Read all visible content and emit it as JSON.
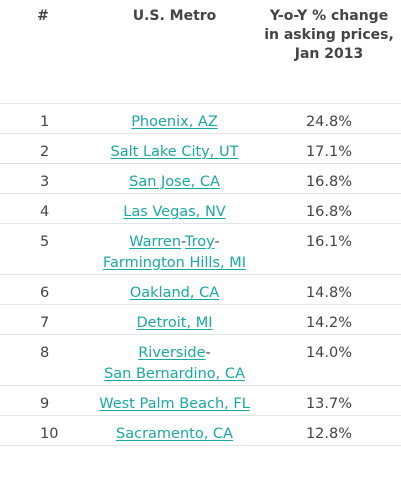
{
  "table": {
    "headers": {
      "rank": "#",
      "metro": "U.S. Metro",
      "change": "Y-o-Y % change in asking prices, Jan 2013"
    },
    "rows": [
      {
        "rank": "1",
        "metro_parts": [
          "Phoenix, AZ"
        ],
        "change": "24.8%"
      },
      {
        "rank": "2",
        "metro_parts": [
          "Salt Lake City, UT"
        ],
        "change": "17.1%"
      },
      {
        "rank": "3",
        "metro_parts": [
          "San Jose, CA"
        ],
        "change": "16.8%"
      },
      {
        "rank": "4",
        "metro_parts": [
          "Las Vegas, NV"
        ],
        "change": "16.8%"
      },
      {
        "rank": "5",
        "metro_parts": [
          "Warren",
          "Troy",
          "Farmington Hills, MI"
        ],
        "change": "16.1%"
      },
      {
        "rank": "6",
        "metro_parts": [
          "Oakland, CA"
        ],
        "change": "14.8%"
      },
      {
        "rank": "7",
        "metro_parts": [
          "Detroit, MI"
        ],
        "change": "14.2%"
      },
      {
        "rank": "8",
        "metro_parts": [
          "Riverside",
          "San Bernardino, CA"
        ],
        "change": "14.0%"
      },
      {
        "rank": "9",
        "metro_parts": [
          "West Palm Beach, FL"
        ],
        "change": "13.7%"
      },
      {
        "rank": "10",
        "metro_parts": [
          "Sacramento, CA"
        ],
        "change": "12.8%"
      }
    ],
    "link_color": "#1ba7a3"
  }
}
